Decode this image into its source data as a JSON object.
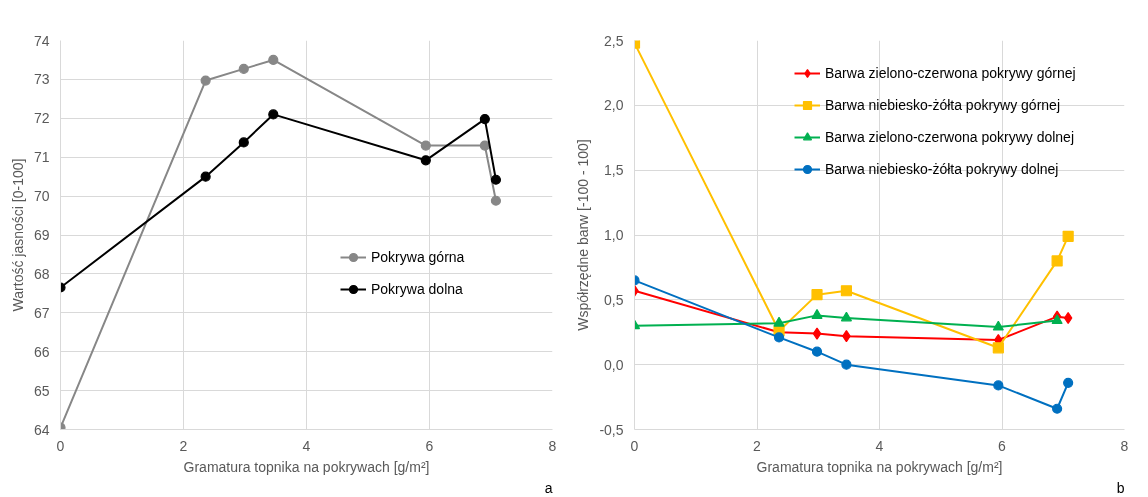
{
  "chart_data": [
    {
      "type": "line",
      "xlabel": "Gramatura topnika na pokrywach [g/m²]",
      "ylabel": "Wartość jasności [0-100]",
      "annotations": [
        "a"
      ],
      "x": [
        0,
        2.36,
        2.98,
        3.46,
        5.94,
        6.9,
        7.08
      ],
      "series": [
        {
          "name": "Pokrywa górna",
          "color": "#878787",
          "marker": "circle",
          "values": [
            64.05,
            72.97,
            73.27,
            73.5,
            71.3,
            71.3,
            69.88
          ]
        },
        {
          "name": "Pokrywa dolna",
          "color": "#000000",
          "marker": "circle",
          "values": [
            67.65,
            70.5,
            71.38,
            72.1,
            70.92,
            71.98,
            70.42
          ]
        }
      ],
      "xlim": [
        0,
        8
      ],
      "xticks": [
        0,
        2,
        4,
        6,
        8
      ],
      "ylim": [
        64,
        74
      ],
      "yticks": [
        64,
        65,
        66,
        67,
        68,
        69,
        70,
        71,
        72,
        73,
        74
      ],
      "grid": true,
      "legend": "right"
    },
    {
      "type": "line",
      "xlabel": "Gramatura topnika na pokrywach [g/m²]",
      "ylabel": "Współrzędne barw [-100 - 100]",
      "annotations": [
        "b"
      ],
      "x": [
        0,
        2.36,
        2.98,
        3.46,
        5.94,
        6.9,
        7.08
      ],
      "series": [
        {
          "name": "Barwa zielono-czerwona pokrywy górnej",
          "color": "#ff0000",
          "marker": "diamond",
          "values": [
            0.57,
            0.25,
            0.24,
            0.22,
            0.19,
            0.37,
            0.36
          ]
        },
        {
          "name": "Barwa niebiesko-żółta pokrywy górnej",
          "color": "#ffc000",
          "marker": "square",
          "values": [
            2.48,
            0.26,
            0.54,
            0.57,
            0.13,
            0.8,
            0.99
          ]
        },
        {
          "name": "Barwa zielono-czerwona pokrywy dolnej",
          "color": "#00b050",
          "marker": "triangle",
          "x": [
            0,
            2.36,
            2.98,
            3.46,
            5.94,
            6.9
          ],
          "values": [
            0.3,
            0.32,
            0.38,
            0.36,
            0.29,
            0.34
          ]
        },
        {
          "name": "Barwa niebiesko-żółta pokrywy dolnej",
          "color": "#0070c0",
          "marker": "circle",
          "values": [
            0.65,
            0.21,
            0.1,
            0.0,
            -0.16,
            -0.34,
            -0.14
          ]
        }
      ],
      "xlim": [
        0,
        8
      ],
      "xticks": [
        0,
        2,
        4,
        6,
        8
      ],
      "ylim": [
        -0.5,
        2.5
      ],
      "yticks": [
        {
          "value": -0.5,
          "label": "-0,5"
        },
        {
          "value": 0,
          "label": "0,0"
        },
        {
          "value": 0.5,
          "label": "0,5"
        },
        {
          "value": 1,
          "label": "1,0"
        },
        {
          "value": 1.5,
          "label": "1,5"
        },
        {
          "value": 2,
          "label": "2,0"
        },
        {
          "value": 2.5,
          "label": "2,5"
        }
      ],
      "grid": true,
      "legend": "top right"
    }
  ]
}
